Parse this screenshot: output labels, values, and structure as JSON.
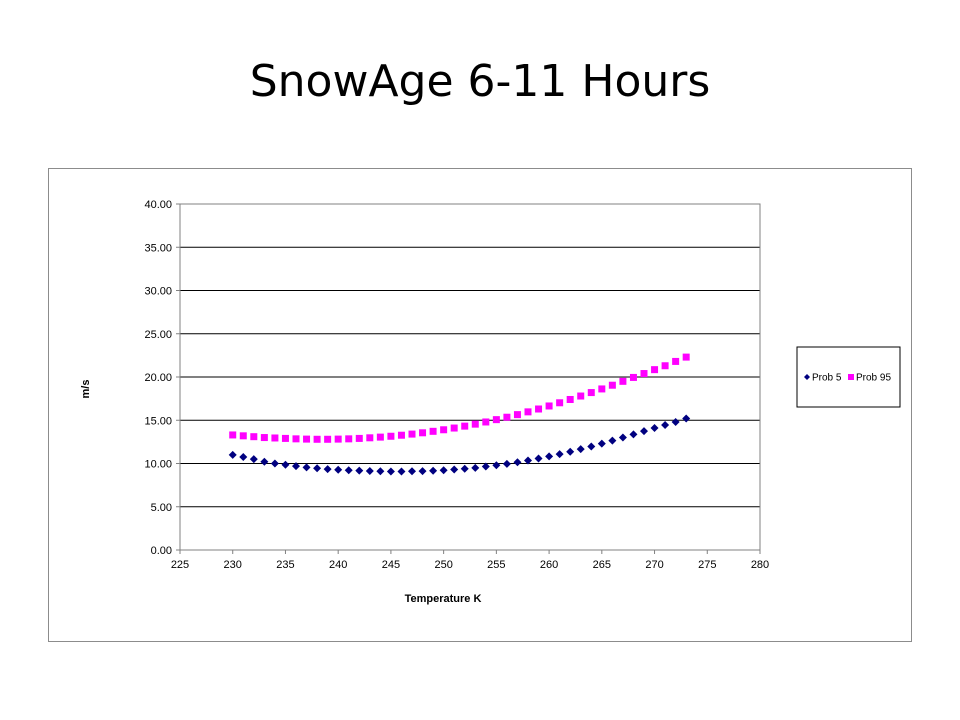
{
  "slide": {
    "title": "SnowAge 6-11 Hours"
  },
  "chart_data": {
    "type": "scatter",
    "title": "",
    "xlabel": "Temperature K",
    "ylabel": "m/s",
    "xlim": [
      225,
      280
    ],
    "ylim": [
      0,
      40
    ],
    "xticks": [
      225,
      230,
      235,
      240,
      245,
      250,
      255,
      260,
      265,
      270,
      275,
      280
    ],
    "yticks": [
      0,
      5,
      10,
      15,
      20,
      25,
      30,
      35,
      40
    ],
    "ytick_labels": [
      "0.00",
      "5.00",
      "10.00",
      "15.00",
      "20.00",
      "25.00",
      "30.00",
      "35.00",
      "40.00"
    ],
    "grid": "horizontal",
    "legend": "right",
    "x": [
      230,
      231,
      232,
      233,
      234,
      235,
      236,
      237,
      238,
      239,
      240,
      241,
      242,
      243,
      244,
      245,
      246,
      247,
      248,
      249,
      250,
      251,
      252,
      253,
      254,
      255,
      256,
      257,
      258,
      259,
      260,
      261,
      262,
      263,
      264,
      265,
      266,
      267,
      268,
      269,
      270,
      271,
      272,
      273
    ],
    "series": [
      {
        "name": "Prob 5",
        "color": "#000080",
        "marker": "diamond",
        "values": [
          11.0,
          10.75,
          10.5,
          10.2,
          10.0,
          9.85,
          9.7,
          9.55,
          9.45,
          9.35,
          9.28,
          9.22,
          9.17,
          9.13,
          9.1,
          9.08,
          9.08,
          9.1,
          9.12,
          9.16,
          9.22,
          9.3,
          9.4,
          9.5,
          9.65,
          9.8,
          9.95,
          10.15,
          10.35,
          10.58,
          10.82,
          11.08,
          11.36,
          11.66,
          11.97,
          12.3,
          12.65,
          13.0,
          13.37,
          13.75,
          14.1,
          14.45,
          14.8,
          15.2
        ]
      },
      {
        "name": "Prob 95",
        "color": "#ff00ff",
        "marker": "square",
        "values": [
          13.3,
          13.2,
          13.1,
          13.0,
          12.95,
          12.9,
          12.85,
          12.82,
          12.8,
          12.8,
          12.82,
          12.85,
          12.9,
          12.97,
          13.05,
          13.15,
          13.27,
          13.4,
          13.55,
          13.72,
          13.9,
          14.1,
          14.32,
          14.55,
          14.8,
          15.07,
          15.35,
          15.65,
          15.97,
          16.3,
          16.65,
          17.02,
          17.4,
          17.8,
          18.2,
          18.62,
          19.05,
          19.5,
          19.95,
          20.4,
          20.85,
          21.3,
          21.8,
          22.3
        ]
      }
    ]
  }
}
